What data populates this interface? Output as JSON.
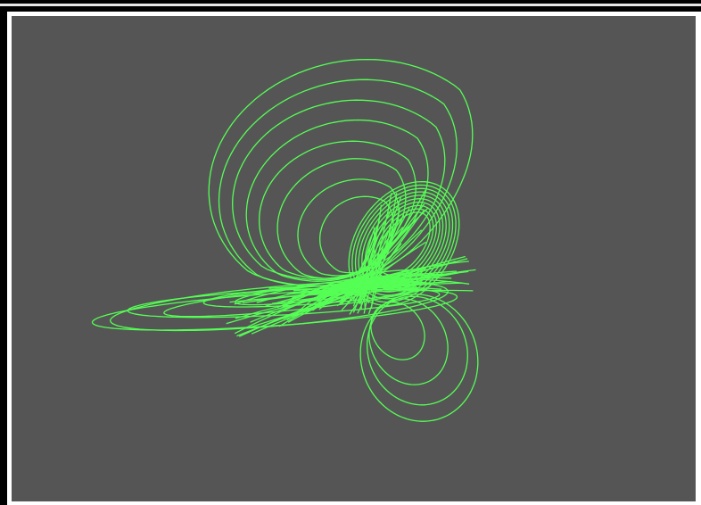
{
  "window": {
    "background_color": "#555555",
    "frame_color": "#000000",
    "border_color": "#ffffff"
  },
  "attractor": {
    "stroke_color": "#55ff55",
    "icon": "strange-attractor-trajectory"
  }
}
